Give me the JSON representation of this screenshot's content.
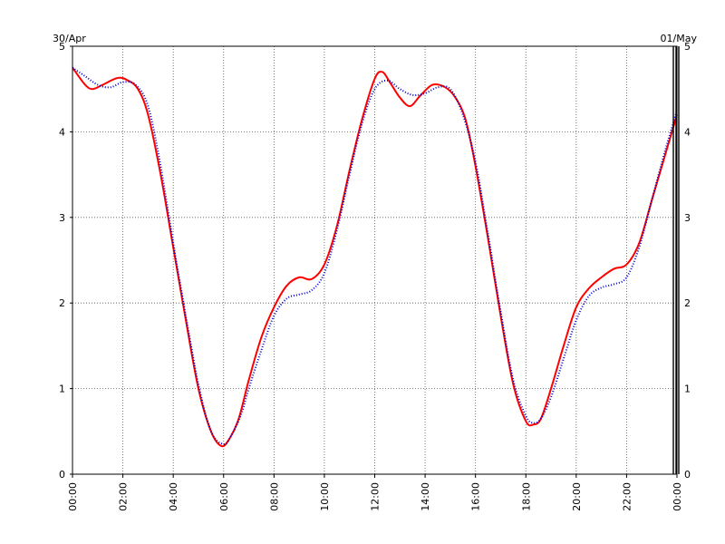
{
  "chart_data": {
    "type": "line",
    "title": "",
    "xlabel": "",
    "ylabel": "",
    "date_start_label": "30/Apr",
    "date_end_label": "01/May",
    "xlim": [
      0,
      24
    ],
    "ylim": [
      0,
      5
    ],
    "grid": true,
    "y_ticks": [
      "0",
      "1",
      "2",
      "3",
      "4",
      "5"
    ],
    "x_ticks": [
      "00:00",
      "02:00",
      "04:00",
      "06:00",
      "08:00",
      "10:00",
      "12:00",
      "14:00",
      "16:00",
      "18:00",
      "20:00",
      "22:00",
      "00:00"
    ],
    "series": [
      {
        "color": "#ff0000",
        "style": "solid",
        "x": [
          0,
          0.5,
          0.8,
          1.2,
          1.8,
          2.2,
          2.6,
          3.0,
          3.5,
          4.0,
          4.5,
          5.0,
          5.5,
          5.9,
          6.2,
          6.6,
          7.0,
          7.5,
          8.0,
          8.5,
          9.0,
          9.5,
          10.0,
          10.5,
          11.0,
          11.5,
          12.0,
          12.3,
          12.6,
          13.0,
          13.4,
          13.8,
          14.3,
          14.8,
          15.2,
          15.6,
          16.0,
          16.5,
          17.0,
          17.5,
          18.0,
          18.3,
          18.6,
          19.0,
          19.5,
          20.0,
          20.5,
          21.0,
          21.5,
          22.0,
          22.5,
          23.0,
          23.5,
          24.0
        ],
        "y": [
          4.75,
          4.55,
          4.5,
          4.55,
          4.63,
          4.6,
          4.5,
          4.2,
          3.5,
          2.65,
          1.8,
          1.0,
          0.5,
          0.33,
          0.4,
          0.65,
          1.1,
          1.6,
          1.95,
          2.2,
          2.3,
          2.28,
          2.45,
          2.9,
          3.55,
          4.15,
          4.62,
          4.7,
          4.58,
          4.4,
          4.3,
          4.42,
          4.55,
          4.52,
          4.4,
          4.15,
          3.6,
          2.75,
          1.85,
          1.05,
          0.62,
          0.58,
          0.65,
          1.0,
          1.5,
          1.95,
          2.17,
          2.3,
          2.4,
          2.45,
          2.7,
          3.2,
          3.7,
          4.2
        ]
      },
      {
        "color": "#0000cc",
        "style": "dotted",
        "x": [
          0,
          0.5,
          1.0,
          1.5,
          2.0,
          2.5,
          3.0,
          3.5,
          4.0,
          4.5,
          5.0,
          5.5,
          6.0,
          6.3,
          6.7,
          7.0,
          7.5,
          8.0,
          8.5,
          9.0,
          9.5,
          10.0,
          10.5,
          11.0,
          11.5,
          12.0,
          12.5,
          13.0,
          13.5,
          14.0,
          14.5,
          15.0,
          15.5,
          16.0,
          16.5,
          17.0,
          17.5,
          18.0,
          18.3,
          18.6,
          19.0,
          19.5,
          20.0,
          20.5,
          21.0,
          21.5,
          22.0,
          22.5,
          23.0,
          23.5,
          24.0
        ],
        "y": [
          4.75,
          4.65,
          4.55,
          4.52,
          4.58,
          4.55,
          4.3,
          3.6,
          2.7,
          1.85,
          1.05,
          0.5,
          0.35,
          0.45,
          0.7,
          1.0,
          1.45,
          1.85,
          2.05,
          2.1,
          2.15,
          2.35,
          2.85,
          3.5,
          4.1,
          4.5,
          4.6,
          4.5,
          4.43,
          4.45,
          4.52,
          4.5,
          4.2,
          3.65,
          2.8,
          1.9,
          1.1,
          0.68,
          0.6,
          0.65,
          0.9,
          1.35,
          1.8,
          2.08,
          2.18,
          2.22,
          2.3,
          2.65,
          3.2,
          3.75,
          4.25
        ]
      }
    ]
  }
}
